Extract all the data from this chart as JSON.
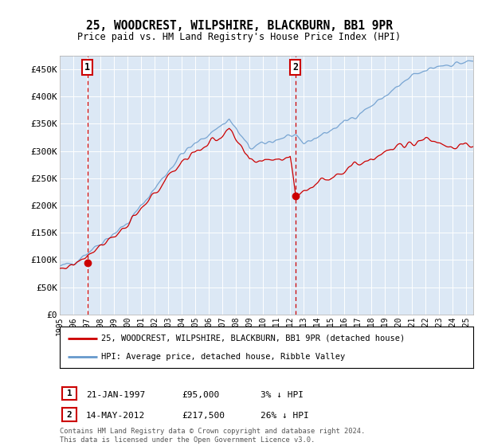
{
  "title": "25, WOODCREST, WILPSHIRE, BLACKBURN, BB1 9PR",
  "subtitle": "Price paid vs. HM Land Registry's House Price Index (HPI)",
  "legend_line1": "25, WOODCREST, WILPSHIRE, BLACKBURN, BB1 9PR (detached house)",
  "legend_line2": "HPI: Average price, detached house, Ribble Valley",
  "annotation1_label": "1",
  "annotation1_date": "21-JAN-1997",
  "annotation1_price": "£95,000",
  "annotation1_hpi": "3% ↓ HPI",
  "annotation1_year": 1997.05,
  "annotation1_value": 95000,
  "annotation2_label": "2",
  "annotation2_date": "14-MAY-2012",
  "annotation2_price": "£217,500",
  "annotation2_hpi": "26% ↓ HPI",
  "annotation2_year": 2012.37,
  "annotation2_value": 217500,
  "ylabel_ticks": [
    "£0",
    "£50K",
    "£100K",
    "£150K",
    "£200K",
    "£250K",
    "£300K",
    "£350K",
    "£400K",
    "£450K"
  ],
  "ytick_values": [
    0,
    50000,
    100000,
    150000,
    200000,
    250000,
    300000,
    350000,
    400000,
    450000
  ],
  "xmin": 1995.0,
  "xmax": 2025.5,
  "ymin": 0,
  "ymax": 475000,
  "plot_bg_color": "#dce8f5",
  "red_color": "#cc0000",
  "blue_color": "#6699cc",
  "vline_color": "#cc0000",
  "grid_color": "#c0d0e8",
  "footer_text": "Contains HM Land Registry data © Crown copyright and database right 2024.\nThis data is licensed under the Open Government Licence v3.0.",
  "font_family": "DejaVu Sans Mono"
}
